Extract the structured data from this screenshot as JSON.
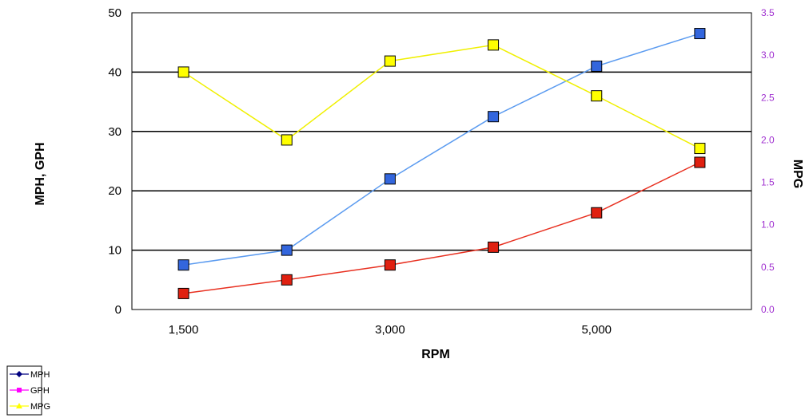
{
  "chart_data": {
    "type": "line",
    "xlabel": "RPM",
    "ylabel_left": "MPH, GPH",
    "ylabel_right": "MPG",
    "x_ticks": [
      "1,500",
      "3,000",
      "5,000"
    ],
    "categories": [
      "1,500",
      "2,000",
      "3,000",
      "4,000",
      "5,000",
      "6,000"
    ],
    "ylim_left": [
      0,
      50
    ],
    "ylim_right": [
      0,
      3.5
    ],
    "y_ticks_left": [
      "0",
      "10",
      "20",
      "30",
      "40",
      "50"
    ],
    "y_ticks_right": [
      "0.0",
      "0.5",
      "1.0",
      "1.5",
      "2.0",
      "2.5",
      "3.0",
      "3.5"
    ],
    "gridlines": "horizontal",
    "legend_position": "bottom-left",
    "series": [
      {
        "name": "MPH",
        "axis": "left",
        "line_color": "#5b9bf0",
        "marker_color": "#3366dd",
        "legend_color": "#000080",
        "legend_marker": "diamond",
        "values": [
          7.5,
          10,
          22,
          32.5,
          41,
          46.5
        ]
      },
      {
        "name": "GPH",
        "axis": "left",
        "line_color": "#e83020",
        "marker_color": "#e02010",
        "legend_color": "#ff00ff",
        "legend_marker": "square",
        "values": [
          2.7,
          5,
          7.5,
          10.5,
          16.3,
          24.8
        ]
      },
      {
        "name": "MPG",
        "axis": "right",
        "line_color": "#f0f000",
        "marker_color": "#ffff00",
        "legend_color": "#ffff00",
        "legend_marker": "triangle",
        "values": [
          2.8,
          2.0,
          2.93,
          3.12,
          2.52,
          1.9
        ]
      }
    ]
  }
}
